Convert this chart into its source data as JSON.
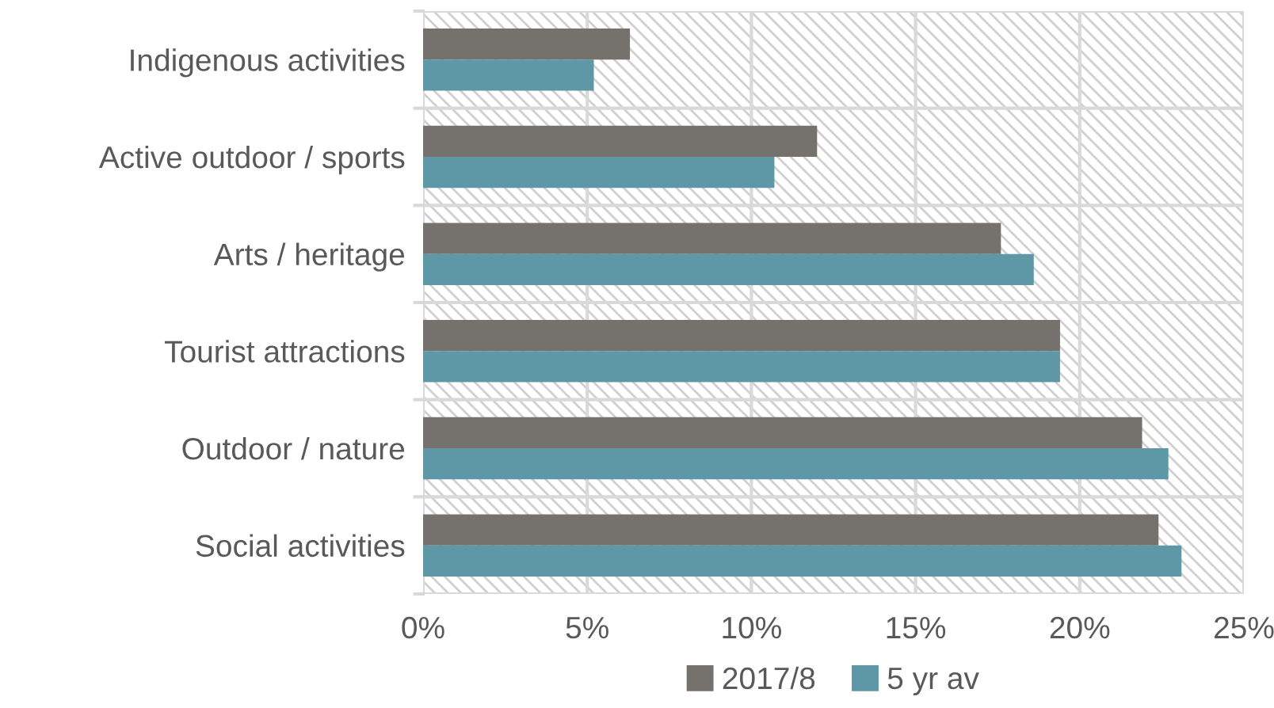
{
  "chart_data": {
    "type": "bar",
    "orientation": "horizontal",
    "categories": [
      "Indigenous activities",
      "Active outdoor / sports",
      "Arts / heritage",
      "Tourist attractions",
      "Outdoor / nature",
      "Social activities"
    ],
    "series": [
      {
        "name": "2017/8",
        "color": "#75716c",
        "values": [
          6.3,
          12.0,
          17.6,
          19.4,
          21.9,
          22.4
        ]
      },
      {
        "name": "5 yr av",
        "color": "#5e97a6",
        "values": [
          5.2,
          10.7,
          18.6,
          19.4,
          22.7,
          23.1
        ]
      }
    ],
    "xlim": [
      0,
      25
    ],
    "xticks": [
      {
        "value": 0,
        "label": "0%"
      },
      {
        "value": 5,
        "label": "5%"
      },
      {
        "value": 10,
        "label": "10%"
      },
      {
        "value": 15,
        "label": "15%"
      },
      {
        "value": 20,
        "label": "20%"
      },
      {
        "value": 25,
        "label": "25%"
      }
    ],
    "grid": true,
    "legend": "bottom"
  }
}
